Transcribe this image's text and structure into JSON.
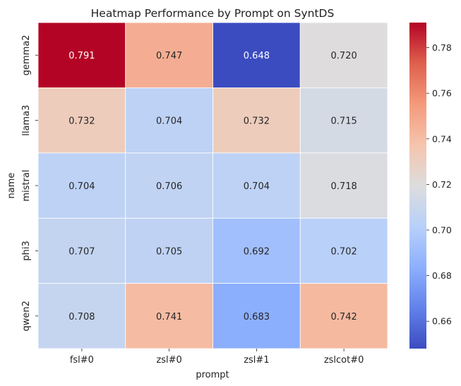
{
  "chart_data": {
    "type": "heatmap",
    "title": "Heatmap Performance by Prompt on SyntDS",
    "xlabel": "prompt",
    "ylabel": "name",
    "x_categories": [
      "fsl#0",
      "zsl#0",
      "zsl#1",
      "zslcot#0"
    ],
    "y_categories": [
      "gemma2",
      "llama3",
      "mistral",
      "phi3",
      "qwen2"
    ],
    "values": [
      [
        0.791,
        0.747,
        0.648,
        0.72
      ],
      [
        0.732,
        0.704,
        0.732,
        0.715
      ],
      [
        0.704,
        0.706,
        0.704,
        0.718
      ],
      [
        0.707,
        0.705,
        0.692,
        0.702
      ],
      [
        0.708,
        0.741,
        0.683,
        0.742
      ]
    ],
    "value_labels": [
      [
        "0.791",
        "0.747",
        "0.648",
        "0.720"
      ],
      [
        "0.732",
        "0.704",
        "0.732",
        "0.715"
      ],
      [
        "0.704",
        "0.706",
        "0.704",
        "0.718"
      ],
      [
        "0.707",
        "0.705",
        "0.692",
        "0.702"
      ],
      [
        "0.708",
        "0.741",
        "0.683",
        "0.742"
      ]
    ],
    "colormap": "coolwarm",
    "vmin": 0.648,
    "vmax": 0.791,
    "colorbar_ticks": [
      0.66,
      0.68,
      0.7,
      0.72,
      0.74,
      0.76,
      0.78
    ],
    "colorbar_tick_labels": [
      "0.66",
      "0.68",
      "0.70",
      "0.72",
      "0.74",
      "0.76",
      "0.78"
    ]
  }
}
